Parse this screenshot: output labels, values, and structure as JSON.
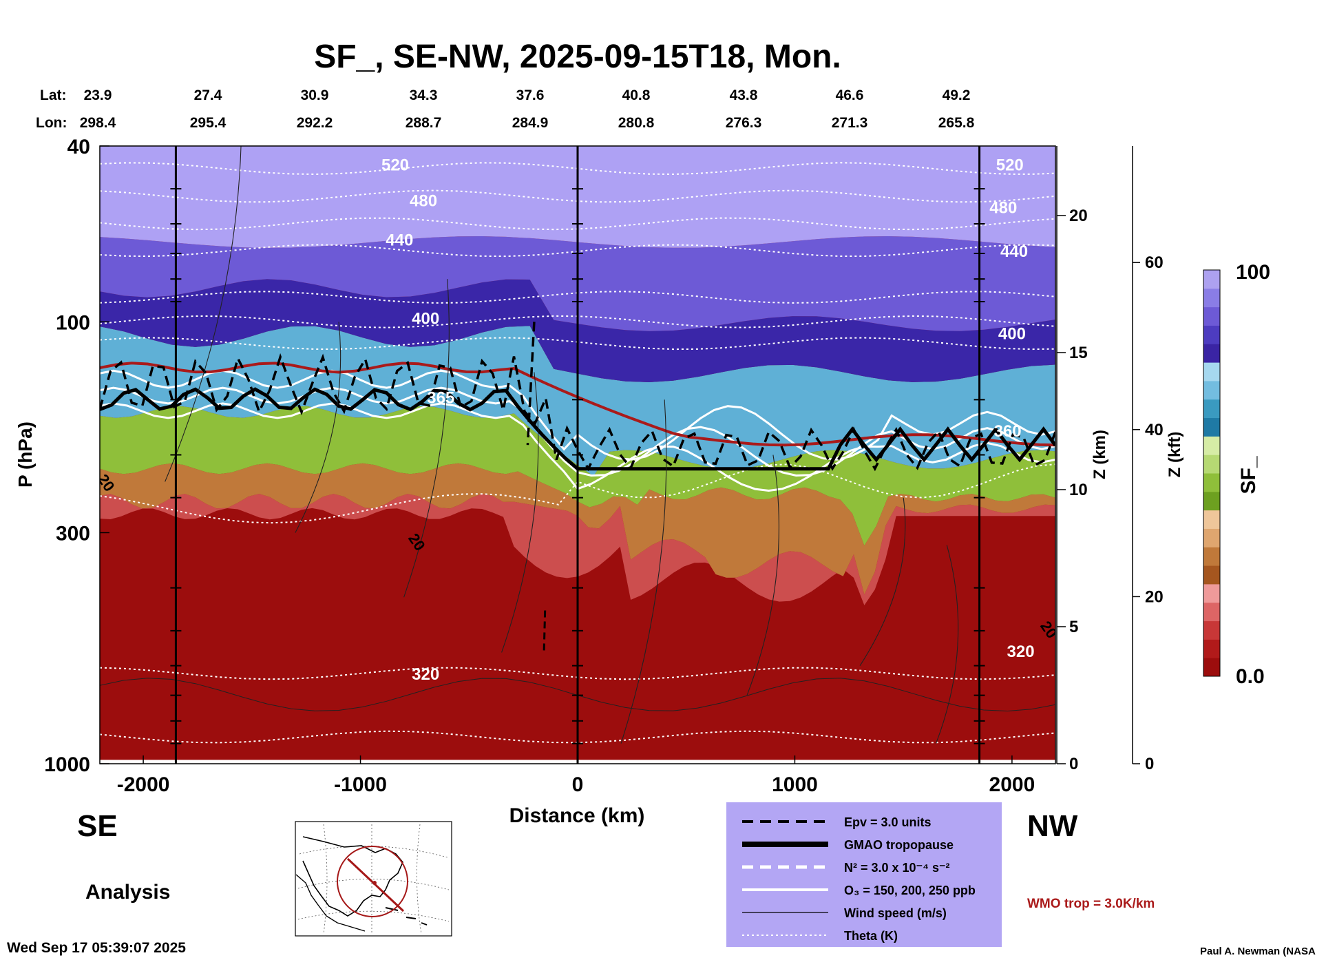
{
  "chart_data": {
    "type": "heatmap",
    "title": "SF_, SE-NW, 2025-09-15T18, Mon.",
    "xlabel": "Distance (km)",
    "ylabel": "P (hPa)",
    "z_km_label": "Z (km)",
    "z_kft_label": "Z (kft)",
    "colorbar_label": "SF_",
    "colorbar_max": "100",
    "colorbar_min": "0.0",
    "xlim": [
      -2200,
      2200
    ],
    "ylim": [
      1000,
      40
    ],
    "y_scale": "log",
    "x_ticks": [
      {
        "value": -2000,
        "label": "-2000"
      },
      {
        "value": -1000,
        "label": "-1000"
      },
      {
        "value": 0,
        "label": "0"
      },
      {
        "value": 1000,
        "label": "1000"
      },
      {
        "value": 2000,
        "label": "2000"
      }
    ],
    "p_ticks": [
      {
        "value": 40,
        "label": "40"
      },
      {
        "value": 100,
        "label": "100"
      },
      {
        "value": 300,
        "label": "300"
      },
      {
        "value": 1000,
        "label": "1000"
      }
    ],
    "z_km_ticks": [
      {
        "value": 0,
        "label": "0"
      },
      {
        "value": 5,
        "label": "5"
      },
      {
        "value": 10,
        "label": "10"
      },
      {
        "value": 15,
        "label": "15"
      },
      {
        "value": 20,
        "label": "20"
      }
    ],
    "z_kft_ticks": [
      {
        "value": 0,
        "label": "0"
      },
      {
        "value": 20,
        "label": "20"
      },
      {
        "value": 40,
        "label": "40"
      },
      {
        "value": 60,
        "label": "60"
      }
    ],
    "lat_label": "Lat:",
    "lon_label": "Lon:",
    "lat": [
      "23.9",
      "27.4",
      "30.9",
      "34.3",
      "37.6",
      "40.8",
      "43.8",
      "46.6",
      "49.2"
    ],
    "lon": [
      "298.4",
      "295.4",
      "292.2",
      "288.7",
      "284.9",
      "280.8",
      "276.3",
      "271.3",
      "265.8"
    ],
    "theta_labels": [
      {
        "text": "520",
        "x": -840,
        "p": 44
      },
      {
        "text": "480",
        "x": -710,
        "p": 53
      },
      {
        "text": "440",
        "x": -820,
        "p": 65
      },
      {
        "text": "400",
        "x": -700,
        "p": 98
      },
      {
        "text": "365",
        "x": -630,
        "p": 148
      },
      {
        "text": "320",
        "x": -700,
        "p": 625
      },
      {
        "text": "520",
        "x": 1990,
        "p": 44
      },
      {
        "text": "480",
        "x": 1960,
        "p": 55
      },
      {
        "text": "440",
        "x": 2010,
        "p": 69
      },
      {
        "text": "400",
        "x": 2000,
        "p": 106
      },
      {
        "text": "360",
        "x": 1980,
        "p": 176
      },
      {
        "text": "320",
        "x": 2040,
        "p": 555
      }
    ],
    "wind_labels": [
      {
        "text": "20",
        "x": -2190,
        "p": 235
      },
      {
        "text": "20",
        "x": -760,
        "p": 320
      },
      {
        "text": "20",
        "x": 2150,
        "p": 505
      }
    ],
    "sf_zones": [
      {
        "name": "stratosphere-upper",
        "value": 98
      },
      {
        "name": "stratosphere-core",
        "value": 80
      },
      {
        "name": "tropopause-blue",
        "value": 62
      },
      {
        "name": "upper-trop-green",
        "value": 40
      },
      {
        "name": "mid-trop-brown",
        "value": 22
      },
      {
        "name": "troposphere-red",
        "value": 2
      }
    ],
    "legend": [
      {
        "label": "Epv = 3.0 units",
        "style": "dashed-black"
      },
      {
        "label": "GMAO tropopause",
        "style": "thick-black"
      },
      {
        "label": "N² = 3.0 x 10⁻⁴ s⁻²",
        "style": "dashed-white"
      },
      {
        "label": "O₃ = 150, 200, 250 ppb",
        "style": "solid-white"
      },
      {
        "label": "Wind speed (m/s)",
        "style": "thin-black"
      },
      {
        "label": "Theta (K)",
        "style": "dotted-white"
      }
    ],
    "wmo_trop_label": "WMO trop = 3.0K/km",
    "se_label": "SE",
    "nw_label": "NW",
    "analysis_label": "Analysis",
    "timestamp": "Wed Sep 17 05:39:07 2025",
    "credit": "Paul A. Newman (NASA",
    "colors": {
      "colorbar": [
        "#9c0d0d",
        "#b11a1a",
        "#c83737",
        "#dd6565",
        "#ef9a9a",
        "#a5561f",
        "#c0793a",
        "#dfa66f",
        "#efc69a",
        "#6da020",
        "#8fbf3a",
        "#b6d973",
        "#d6eca6",
        "#1f7aa5",
        "#3a9ac0",
        "#73bde0",
        "#a6d8ef",
        "#3a24a4",
        "#4d3cc0",
        "#6d5ad6",
        "#8a7de6",
        "#ada1f0"
      ],
      "strat_light": "#aea1f4",
      "legend_bg": "#b3a6f4",
      "wmo": "#aa1a1a",
      "theta": "#ffffff",
      "tropopause": "#000000"
    }
  }
}
